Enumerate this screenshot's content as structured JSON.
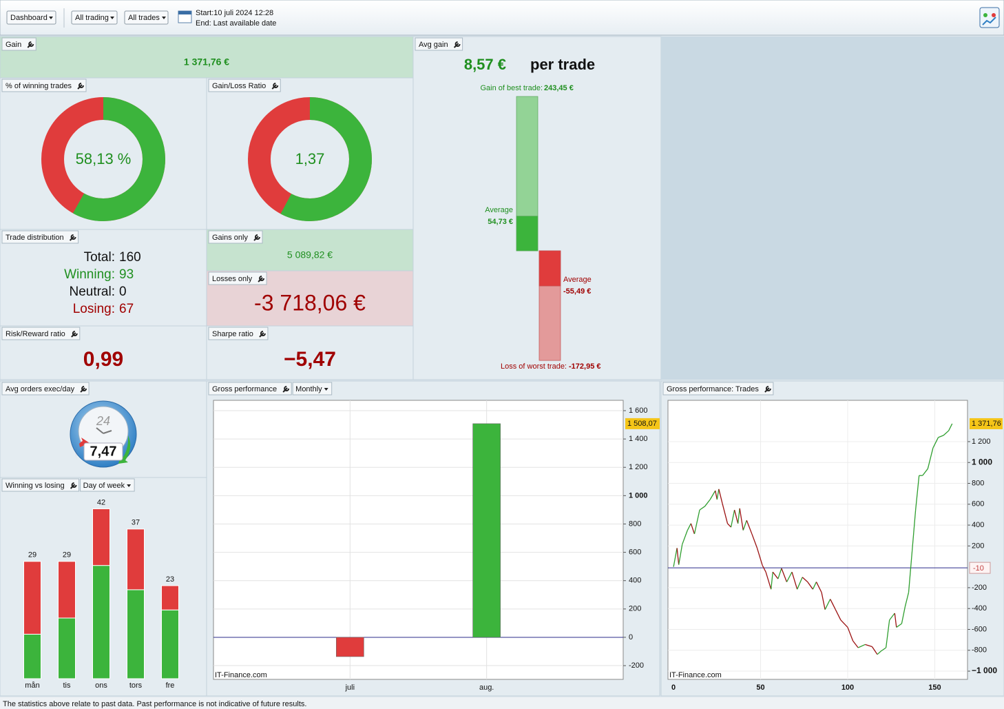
{
  "toolbar": {
    "dashboard": "Dashboard",
    "trading": "All trading",
    "trades": "All trades",
    "start": "Start:10 juli 2024 12:28",
    "end": "End:  Last available date"
  },
  "panels": {
    "gain": {
      "title": "Gain",
      "value": "1 371,76 €"
    },
    "winning_pct": {
      "title": "% of winning trades",
      "value": 58.13,
      "label": "58,13 %"
    },
    "gain_loss_ratio": {
      "title": "Gain/Loss Ratio",
      "value": 1.37,
      "label": "1,37"
    },
    "trade_distribution": {
      "title": "Trade distribution",
      "rows": [
        [
          "Total:",
          160
        ],
        [
          "Winning:",
          93
        ],
        [
          "Neutral:",
          0
        ],
        [
          "Losing:",
          67
        ]
      ]
    },
    "gains_only": {
      "title": "Gains only",
      "value": "5 089,82 €"
    },
    "losses_only": {
      "title": "Losses only",
      "value": "-3 718,06 €"
    },
    "risk_reward": {
      "title": "Risk/Reward ratio",
      "value": "0,99"
    },
    "sharpe": {
      "title": "Sharpe ratio",
      "value": "−5,47"
    },
    "avg_orders": {
      "title": "Avg orders exec/day",
      "dial": "24",
      "value": "7,47"
    },
    "avg_gain": {
      "title": "Avg gain",
      "headline": "8,57 €",
      "headline_unit": "per trade",
      "best_label": "Gain of best trade:",
      "best": {
        "value": 243.45,
        "label": "243,45 €"
      },
      "avg_gain_label": "Average",
      "avg_gain": {
        "value": 54.73,
        "label": "54,73 €"
      },
      "avg_loss_label": "Average",
      "avg_loss": {
        "value": -55.49,
        "label": "-55,49 €"
      },
      "worst_label": "Loss of worst trade:",
      "worst": {
        "value": -172.95,
        "label": "-172,95 €"
      }
    }
  },
  "chart_data": [
    {
      "type": "bar",
      "stacked": true,
      "title": "Winning vs losing",
      "selector": "Day of week",
      "categories": [
        "mån",
        "tis",
        "ons",
        "tors",
        "fre"
      ],
      "series": [
        {
          "color": "#3cb43c",
          "values": [
            11,
            15,
            28,
            22,
            17
          ]
        },
        {
          "color": "#e03c3c",
          "values": [
            18,
            14,
            14,
            15,
            6
          ]
        }
      ],
      "totals": [
        29,
        29,
        42,
        37,
        23
      ],
      "ylim": [
        0,
        46
      ]
    },
    {
      "type": "bar",
      "title": "Gross performance",
      "selector": "Monthly",
      "watermark": "IT-Finance.com",
      "categories": [
        "juli",
        "aug."
      ],
      "values": [
        -136.31,
        1508.07
      ],
      "value_labels": [
        null,
        "1 508,07"
      ],
      "colors": {
        "positive": "#3cb43c",
        "negative": "#e03c3c"
      },
      "ylim": [
        -297,
        1673
      ],
      "yticks": [
        -200,
        0,
        200,
        400,
        600,
        800,
        {
          "value": 1000,
          "label": "1 000"
        },
        {
          "value": 1200,
          "label": "1 200"
        },
        {
          "value": 1400,
          "label": "1 400"
        },
        {
          "value": 1600,
          "label": "1 600"
        }
      ],
      "grid": true
    },
    {
      "type": "line",
      "title": "Gross performance: Trades",
      "watermark": "IT-Finance.com",
      "x": [
        0,
        2,
        3,
        5,
        8,
        10,
        12,
        15,
        18,
        21,
        24,
        25,
        26,
        28,
        31,
        33,
        35,
        37,
        38,
        40,
        42,
        45,
        48,
        51,
        53,
        56,
        57,
        60,
        62,
        65,
        68,
        71,
        74,
        77,
        80,
        82,
        85,
        87,
        90,
        93,
        96,
        100,
        103,
        106,
        110,
        114,
        117,
        119,
        122,
        124,
        127,
        128,
        131,
        133,
        135,
        137,
        139,
        141,
        143,
        146,
        149,
        152,
        155,
        158,
        160
      ],
      "values": [
        0,
        180,
        20,
        215,
        350,
        415,
        315,
        545,
        580,
        645,
        730,
        645,
        745,
        610,
        415,
        380,
        545,
        415,
        560,
        350,
        445,
        315,
        180,
        15,
        -50,
        -215,
        -50,
        -115,
        -15,
        -145,
        -50,
        -215,
        -100,
        -145,
        -215,
        -145,
        -245,
        -410,
        -310,
        -410,
        -510,
        -580,
        -710,
        -775,
        -745,
        -765,
        -840,
        -810,
        -775,
        -510,
        -445,
        -580,
        -545,
        -380,
        -245,
        150,
        545,
        875,
        875,
        940,
        1140,
        1240,
        1260,
        1305,
        1371.76
      ],
      "end_label": "1 371,76",
      "colors": {
        "up": "#2e9e2e",
        "down": "#9a1010"
      },
      "baseline": {
        "value": -10,
        "label": "-10"
      },
      "xlim": [
        -3.2,
        168.8
      ],
      "xticks": [
        0,
        50,
        100,
        150
      ],
      "ylim": [
        -1079,
        1596
      ],
      "yticks": [
        {
          "value": -1000,
          "label": "−1 000"
        },
        -800,
        -600,
        -400,
        -200,
        200,
        400,
        600,
        800,
        {
          "value": 1000,
          "label": "1 000"
        },
        {
          "value": 1200,
          "label": "1 200"
        }
      ],
      "grid": true
    }
  ],
  "footer": "The statistics above relate to past data. Past performance is not indicative of future results."
}
